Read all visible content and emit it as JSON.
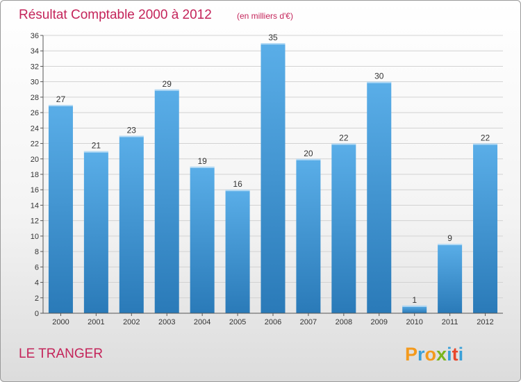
{
  "chart_data": {
    "type": "bar",
    "title": "Résultat Comptable 2000 à 2012",
    "subtitle": "(en milliers d'€)",
    "categories": [
      "2000",
      "2001",
      "2002",
      "2003",
      "2004",
      "2005",
      "2006",
      "2007",
      "2008",
      "2009",
      "2010",
      "2011",
      "2012"
    ],
    "values": [
      27,
      21,
      23,
      29,
      19,
      16,
      35,
      20,
      22,
      30,
      1,
      9,
      22
    ],
    "ylim": [
      0,
      36
    ],
    "yticks": [
      0,
      2,
      4,
      6,
      8,
      10,
      12,
      14,
      16,
      18,
      20,
      22,
      24,
      26,
      28,
      30,
      32,
      34,
      36
    ],
    "xlabel": "",
    "ylabel": "",
    "grid": true,
    "colors": {
      "bar_top": "#5aaee8",
      "bar_bottom": "#2a7ab8",
      "accent": "#c4245a"
    }
  },
  "footer": {
    "place": "LE TRANGER",
    "logo_letters": [
      "P",
      "r",
      "o",
      "x",
      "i",
      "t",
      "i"
    ],
    "logo_colors": [
      "#f39a1d",
      "#3aa0d8",
      "#f39a1d",
      "#7ab51d",
      "#3aa0d8",
      "#e8462b",
      "#3aa0d8"
    ]
  }
}
